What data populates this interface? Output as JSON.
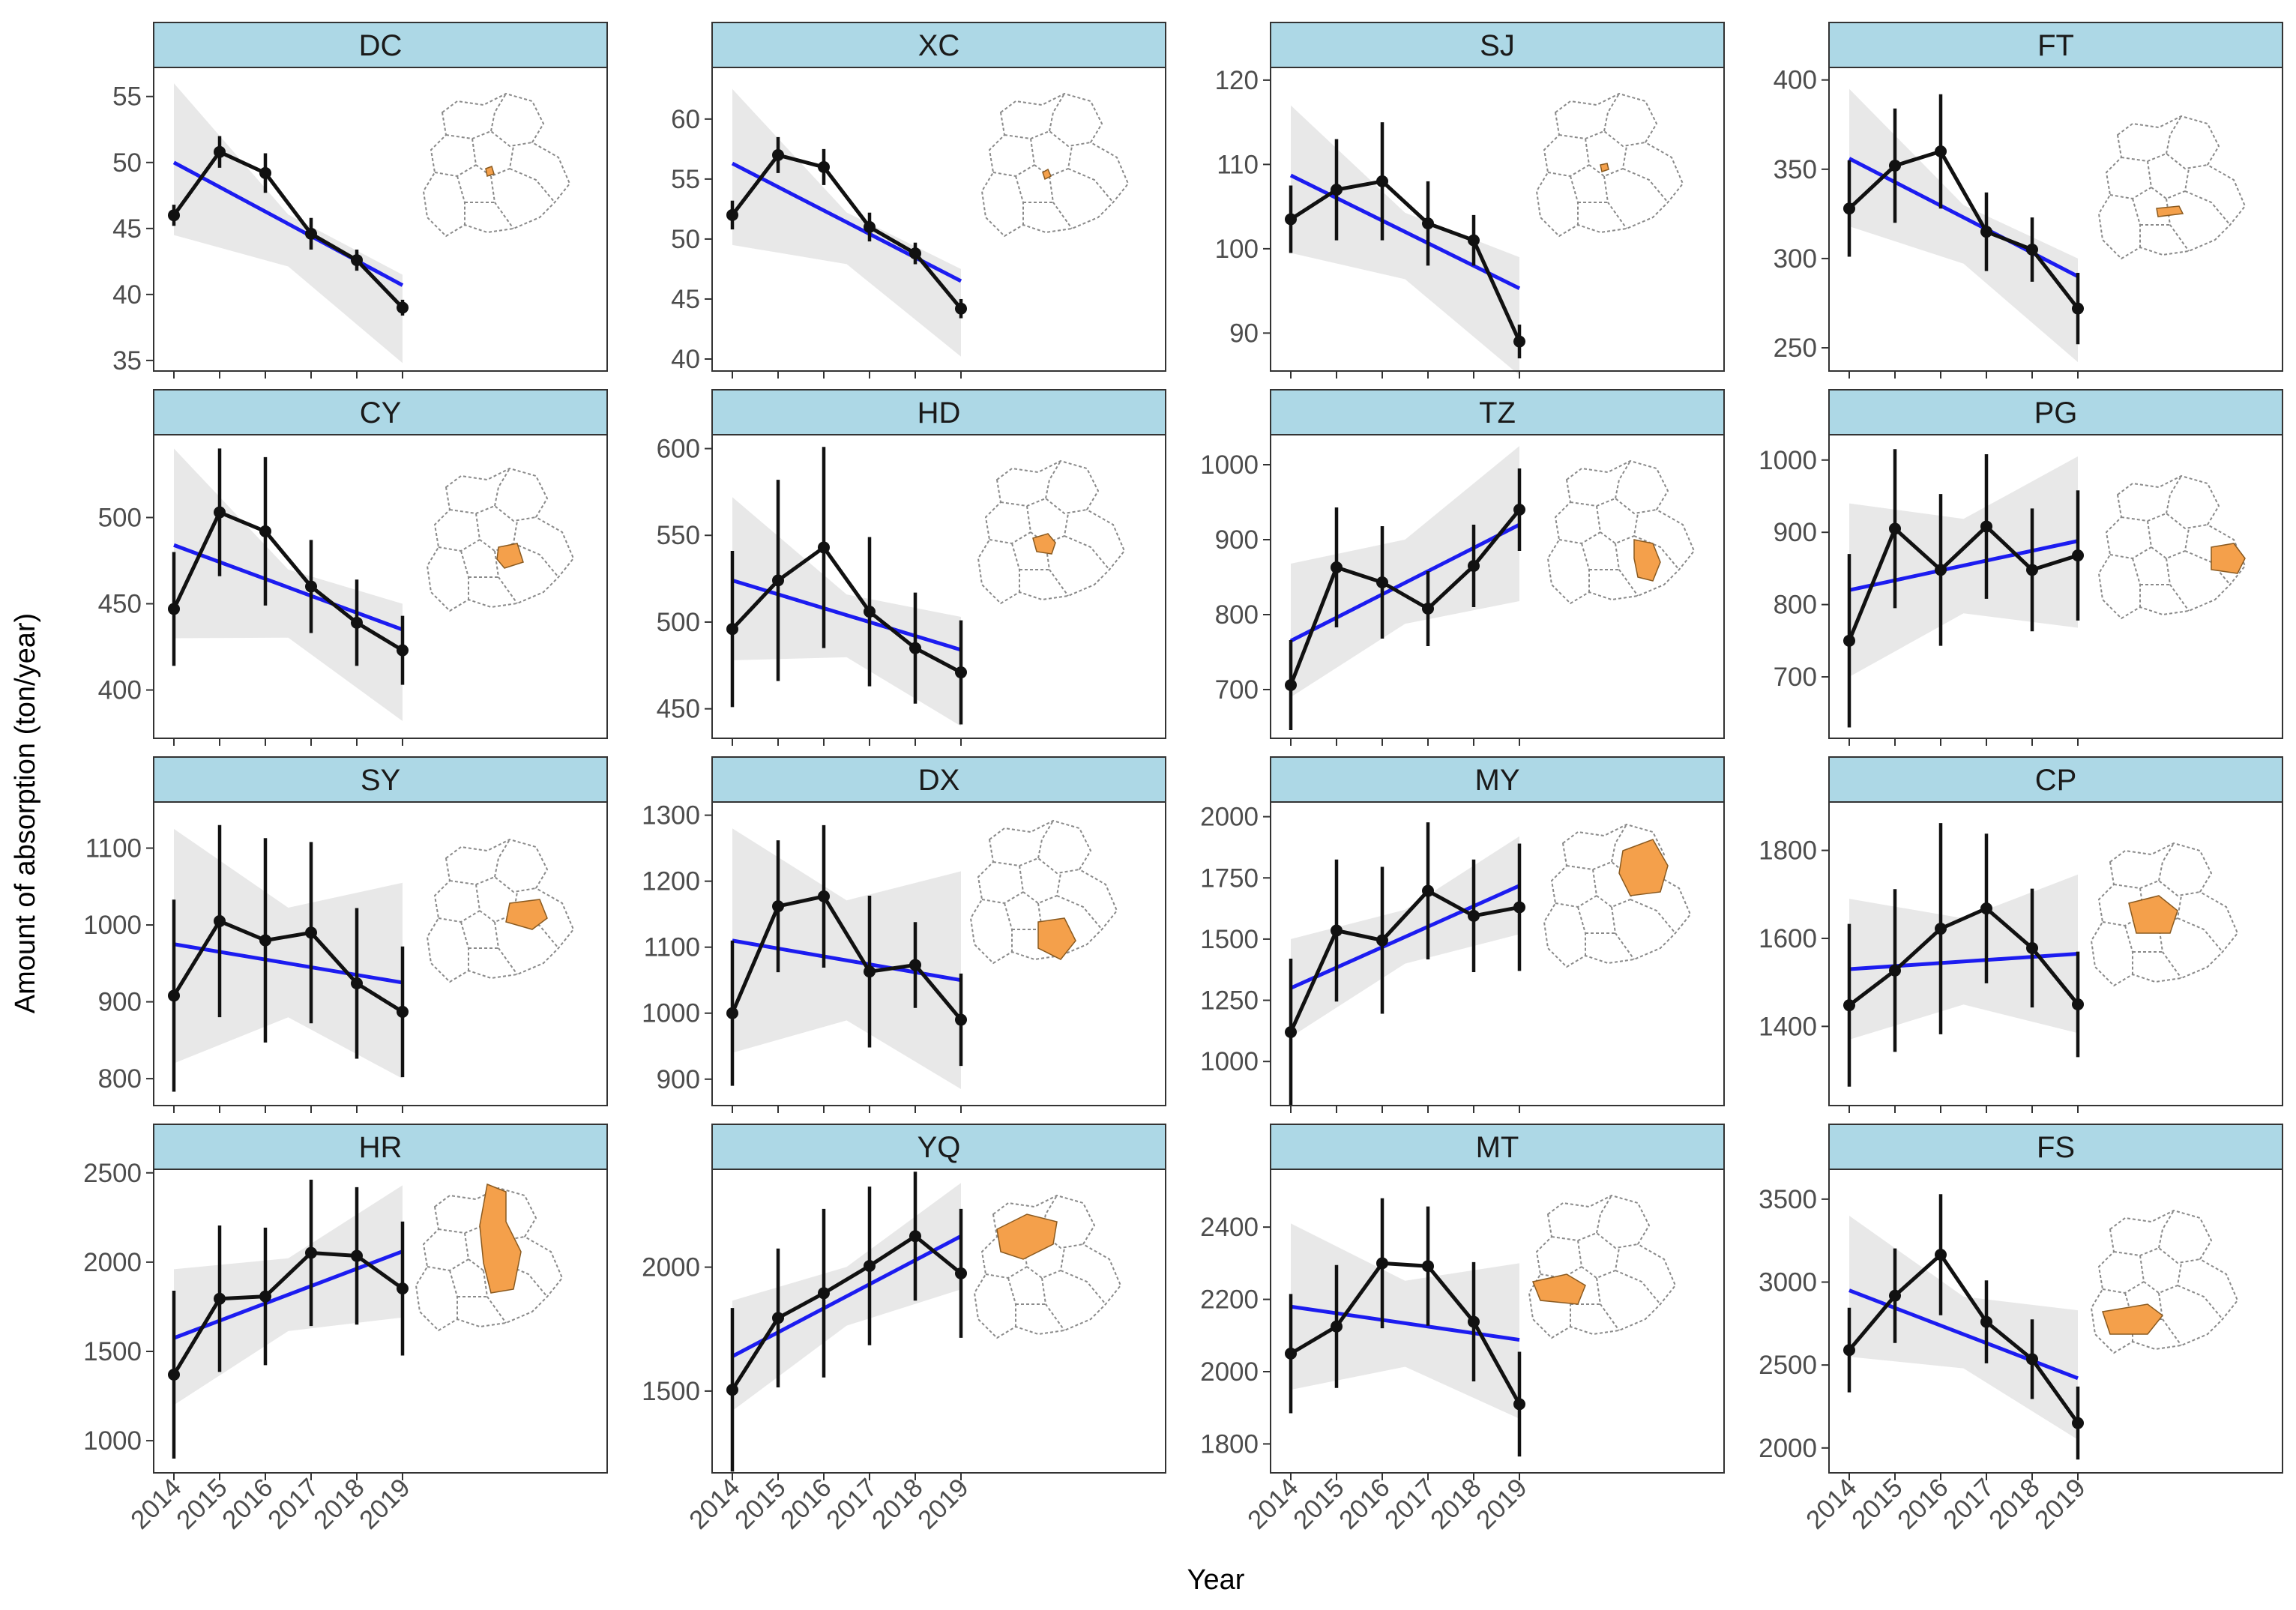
{
  "chart_data": {
    "type": "line",
    "title": "",
    "xlabel": "Year",
    "ylabel": "Amount of absorption (ton/year)",
    "x": [
      "2014",
      "2015",
      "2016",
      "2017",
      "2018",
      "2019"
    ],
    "colors": {
      "strip": "#add8e6",
      "trend": "#1c1cf0",
      "ci_band": "#d9d9d9",
      "series": "#111111",
      "highlight": "#f4a04b"
    },
    "panels": [
      {
        "name": "DC",
        "values": [
          46,
          50.8,
          49.2,
          44.6,
          42.6,
          39
        ],
        "err": [
          0.8,
          1.2,
          1.5,
          1.2,
          0.8,
          0.6
        ],
        "trend": [
          50,
          40.7
        ],
        "ci_lower": [
          44.5,
          34.8
        ],
        "ci_upper": [
          56,
          41.5
        ],
        "ylim": [
          34.2,
          57.2
        ],
        "yticks": [
          35,
          40,
          45,
          50,
          55
        ],
        "ytick_labels": [
          "35",
          "40",
          "45",
          "50",
          "55"
        ],
        "map_icon": "beijing-map-dc-icon"
      },
      {
        "name": "XC",
        "values": [
          52,
          57,
          56,
          51,
          48.8,
          44.2
        ],
        "err": [
          1.2,
          1.5,
          1.5,
          1.2,
          0.9,
          0.8
        ],
        "trend": [
          56.3,
          46.5
        ],
        "ci_lower": [
          49.5,
          40.2
        ],
        "ci_upper": [
          62.5,
          47.5
        ],
        "ylim": [
          39,
          64.3
        ],
        "yticks": [
          40,
          45,
          50,
          55,
          60
        ],
        "ytick_labels": [
          "40",
          "45",
          "50",
          "55",
          "60"
        ],
        "map_icon": "beijing-map-xc-icon"
      },
      {
        "name": "SJ",
        "values": [
          103.5,
          107,
          108,
          103,
          101,
          89
        ],
        "err": [
          4,
          6,
          7,
          5,
          3,
          2
        ],
        "trend": [
          108.7,
          95.3
        ],
        "ci_lower": [
          99.5,
          85
        ],
        "ci_upper": [
          117,
          99
        ],
        "ylim": [
          85.5,
          121.5
        ],
        "yticks": [
          90,
          100,
          110,
          120
        ],
        "ytick_labels": [
          "90",
          "100",
          "110",
          "120"
        ],
        "map_icon": "beijing-map-sj-icon"
      },
      {
        "name": "FT",
        "values": [
          328,
          352,
          360,
          315,
          305,
          272
        ],
        "err": [
          27,
          32,
          32,
          22,
          18,
          20
        ],
        "trend": [
          356,
          290
        ],
        "ci_lower": [
          318,
          242
        ],
        "ci_upper": [
          395,
          300
        ],
        "ylim": [
          237,
          407
        ],
        "yticks": [
          250,
          300,
          350,
          400
        ],
        "ytick_labels": [
          "250",
          "300",
          "350",
          "400"
        ],
        "map_icon": "beijing-map-ft-icon"
      },
      {
        "name": "CY",
        "values": [
          447,
          503,
          492,
          460,
          439,
          423
        ],
        "err": [
          33,
          37,
          43,
          27,
          25,
          20
        ],
        "trend": [
          484,
          435
        ],
        "ci_lower": [
          430,
          382
        ],
        "ci_upper": [
          540,
          450
        ],
        "ylim": [
          372,
          548
        ],
        "yticks": [
          400,
          450,
          500
        ],
        "ytick_labels": [
          "400",
          "450",
          "500"
        ],
        "map_icon": "beijing-map-cy-icon"
      },
      {
        "name": "HD",
        "values": [
          496,
          524,
          543,
          506,
          485,
          471
        ],
        "err": [
          45,
          58,
          58,
          43,
          32,
          30
        ],
        "trend": [
          524,
          484
        ],
        "ci_lower": [
          478,
          440
        ],
        "ci_upper": [
          572,
          503
        ],
        "ylim": [
          433,
          608
        ],
        "yticks": [
          450,
          500,
          550,
          600
        ],
        "ytick_labels": [
          "450",
          "500",
          "550",
          "600"
        ],
        "map_icon": "beijing-map-hd-icon"
      },
      {
        "name": "TZ",
        "values": [
          706,
          863,
          843,
          808,
          865,
          940
        ],
        "err": [
          60,
          80,
          75,
          50,
          55,
          55
        ],
        "trend": [
          765,
          920
        ],
        "ci_lower": [
          690,
          818
        ],
        "ci_upper": [
          868,
          1025
        ],
        "ylim": [
          635,
          1040
        ],
        "yticks": [
          700,
          800,
          900,
          1000
        ],
        "ytick_labels": [
          "700",
          "800",
          "900",
          "1000"
        ],
        "map_icon": "beijing-map-tz-icon"
      },
      {
        "name": "PG",
        "values": [
          750,
          905,
          848,
          908,
          848,
          868
        ],
        "err": [
          120,
          110,
          105,
          100,
          85,
          90
        ],
        "trend": [
          820,
          888
        ],
        "ci_lower": [
          700,
          768
        ],
        "ci_upper": [
          940,
          1005
        ],
        "ylim": [
          615,
          1035
        ],
        "yticks": [
          700,
          800,
          900,
          1000
        ],
        "ytick_labels": [
          "700",
          "800",
          "900",
          "1000"
        ],
        "map_icon": "beijing-map-pg-icon"
      },
      {
        "name": "SY",
        "values": [
          908,
          1005,
          980,
          990,
          924,
          887
        ],
        "err": [
          125,
          125,
          133,
          118,
          98,
          85
        ],
        "trend": [
          975,
          925
        ],
        "ci_lower": [
          820,
          800
        ],
        "ci_upper": [
          1125,
          1055
        ],
        "ylim": [
          765,
          1160
        ],
        "yticks": [
          800,
          900,
          1000,
          1100
        ],
        "ytick_labels": [
          "800",
          "900",
          "1000",
          "1100"
        ],
        "map_icon": "beijing-map-sy-icon"
      },
      {
        "name": "DX",
        "values": [
          1000,
          1162,
          1177,
          1063,
          1073,
          990
        ],
        "err": [
          110,
          100,
          108,
          115,
          65,
          70
        ],
        "trend": [
          1110,
          1050
        ],
        "ci_lower": [
          940,
          885
        ],
        "ci_upper": [
          1280,
          1215
        ],
        "ylim": [
          860,
          1320
        ],
        "yticks": [
          900,
          1000,
          1100,
          1200,
          1300
        ],
        "ytick_labels": [
          "900",
          "1000",
          "1100",
          "1200",
          "1300"
        ],
        "map_icon": "beijing-map-dx-icon"
      },
      {
        "name": "MY",
        "values": [
          1120,
          1535,
          1495,
          1697,
          1595,
          1630
        ],
        "err": [
          300,
          290,
          300,
          280,
          230,
          260
        ],
        "trend": [
          1300,
          1718
        ],
        "ci_lower": [
          1100,
          1520
        ],
        "ci_upper": [
          1500,
          1920
        ],
        "ylim": [
          820,
          2060
        ],
        "yticks": [
          1000,
          1250,
          1500,
          1750,
          2000
        ],
        "ytick_labels": [
          "1000",
          "1250",
          "1500",
          "1750",
          "2000"
        ],
        "map_icon": "beijing-map-my-icon"
      },
      {
        "name": "CP",
        "values": [
          1448,
          1527,
          1622,
          1668,
          1578,
          1450
        ],
        "err": [
          185,
          185,
          240,
          170,
          135,
          120
        ],
        "trend": [
          1530,
          1565
        ],
        "ci_lower": [
          1370,
          1385
        ],
        "ci_upper": [
          1690,
          1745
        ],
        "ylim": [
          1220,
          1910
        ],
        "yticks": [
          1400,
          1600,
          1800
        ],
        "ytick_labels": [
          "1400",
          "1600",
          "1800"
        ],
        "map_icon": "beijing-map-cp-icon"
      },
      {
        "name": "HR",
        "values": [
          1370,
          1795,
          1808,
          2052,
          2035,
          1852
        ],
        "err": [
          470,
          410,
          385,
          410,
          385,
          375
        ],
        "trend": [
          1575,
          2060
        ],
        "ci_lower": [
          1200,
          1690
        ],
        "ci_upper": [
          1960,
          2430
        ],
        "ylim": [
          820,
          2520
        ],
        "yticks": [
          1000,
          1500,
          2000,
          2500
        ],
        "ytick_labels": [
          "1000",
          "1500",
          "2000",
          "2500"
        ],
        "map_icon": "beijing-map-hr-icon"
      },
      {
        "name": "YQ",
        "values": [
          1505,
          1795,
          1895,
          2005,
          2125,
          1975
        ],
        "err": [
          330,
          280,
          340,
          320,
          260,
          260
        ],
        "trend": [
          1640,
          2125
        ],
        "ci_lower": [
          1420,
          1910
        ],
        "ci_upper": [
          1865,
          2340
        ],
        "ylim": [
          1170,
          2395
        ],
        "yticks": [
          1500,
          2000
        ],
        "ytick_labels": [
          "1500",
          "2000"
        ],
        "map_icon": "beijing-map-yq-icon"
      },
      {
        "name": "MT",
        "values": [
          2050,
          2125,
          2300,
          2292,
          2138,
          1910
        ],
        "err": [
          165,
          170,
          180,
          165,
          165,
          145
        ],
        "trend": [
          2180,
          2088
        ],
        "ci_lower": [
          1950,
          1870
        ],
        "ci_upper": [
          2410,
          2300
        ],
        "ylim": [
          1720,
          2560
        ],
        "yticks": [
          1800,
          2000,
          2200,
          2400
        ],
        "ytick_labels": [
          "1800",
          "2000",
          "2200",
          "2400"
        ],
        "map_icon": "beijing-map-mt-icon"
      },
      {
        "name": "FS",
        "values": [
          2590,
          2918,
          3165,
          2760,
          2535,
          2150
        ],
        "err": [
          255,
          285,
          365,
          250,
          240,
          220
        ],
        "trend": [
          2950,
          2420
        ],
        "ci_lower": [
          2550,
          2050
        ],
        "ci_upper": [
          3400,
          2830
        ],
        "ylim": [
          1850,
          3680
        ],
        "yticks": [
          2000,
          2500,
          3000,
          3500
        ],
        "ytick_labels": [
          "2000",
          "2500",
          "3000",
          "3500"
        ],
        "map_icon": "beijing-map-fs-icon"
      }
    ]
  }
}
